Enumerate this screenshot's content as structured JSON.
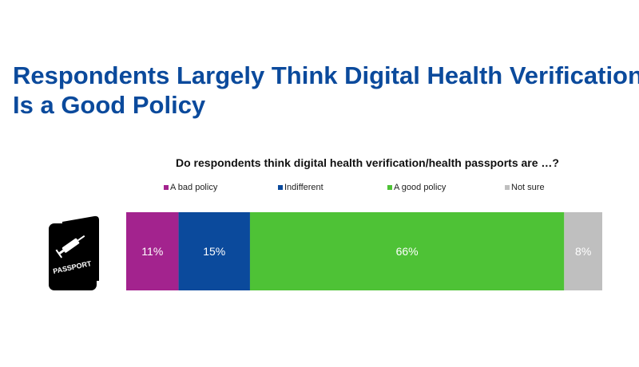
{
  "title": {
    "line1": "Respondents Largely Think Digital Health Verification",
    "line2": "Is a Good Policy"
  },
  "icon": {
    "name": "passport-icon",
    "label": "PASSPORT"
  },
  "chart_data": {
    "type": "bar",
    "orientation": "horizontal-stacked",
    "subtitle": "Do respondents think digital health verification/health passports are …?",
    "legend_position": "top",
    "grid": false,
    "xlim": [
      0,
      100
    ],
    "series": [
      {
        "name": "A bad policy",
        "value": 11,
        "label": "11%",
        "color": "#a3238e",
        "text_color": "#ffffff"
      },
      {
        "name": "Indifferent",
        "value": 15,
        "label": "15%",
        "color": "#0b4a9c",
        "text_color": "#ffffff"
      },
      {
        "name": "A good policy",
        "value": 66,
        "label": "66%",
        "color": "#4ec236",
        "text_color": "#ffffff"
      },
      {
        "name": "Not sure",
        "value": 8,
        "label": "8%",
        "color": "#bfbfbf",
        "text_color": "#ffffff"
      }
    ]
  }
}
